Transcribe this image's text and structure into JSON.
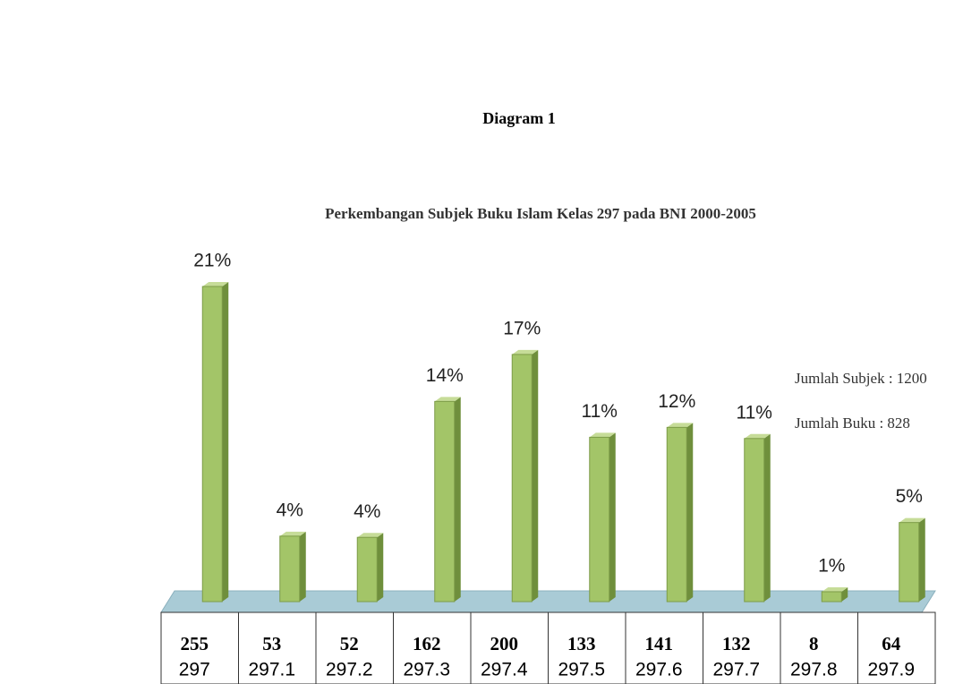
{
  "chart_data": {
    "type": "bar3d",
    "heading": "Diagram 1",
    "title": "Perkembangan Subjek Buku Islam Kelas 297 pada BNI 2000-2005",
    "annotations": [
      "Jumlah Subjek : 1200",
      "Jumlah Buku : 828"
    ],
    "categories": [
      "297",
      "297.1",
      "297.2",
      "297.3",
      "297.4",
      "297.5",
      "297.6",
      "297.7",
      "297.8",
      "297.9"
    ],
    "values": [
      255,
      53,
      52,
      162,
      200,
      133,
      141,
      132,
      8,
      64
    ],
    "percent_labels": [
      "21%",
      "4%",
      "4%",
      "14%",
      "17%",
      "11%",
      "12%",
      "11%",
      "1%",
      "5%"
    ],
    "color": "#a3c568"
  }
}
